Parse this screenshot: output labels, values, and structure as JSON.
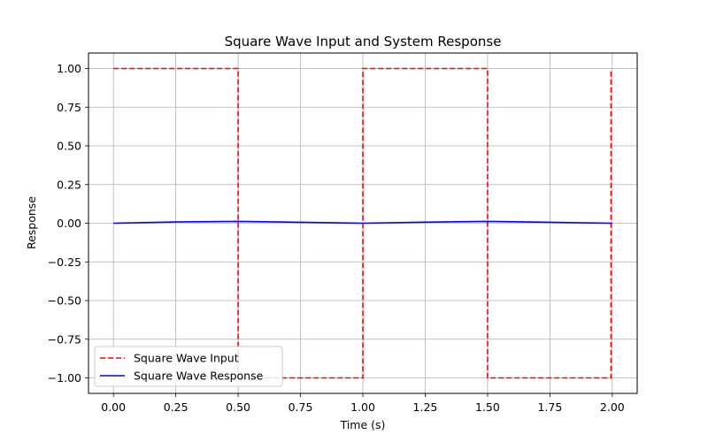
{
  "chart_data": {
    "type": "line",
    "title": "Square Wave Input and System Response",
    "xlabel": "Time (s)",
    "ylabel": "Response",
    "xlim": [
      -0.1,
      2.1
    ],
    "ylim": [
      -1.1,
      1.1
    ],
    "x_ticks": [
      0.0,
      0.25,
      0.5,
      0.75,
      1.0,
      1.25,
      1.5,
      1.75,
      2.0
    ],
    "x_tick_labels": [
      "0.00",
      "0.25",
      "0.50",
      "0.75",
      "1.00",
      "1.25",
      "1.50",
      "1.75",
      "2.00"
    ],
    "y_ticks": [
      1.0,
      0.75,
      0.5,
      0.25,
      0.0,
      -0.25,
      -0.5,
      -0.75,
      -1.0
    ],
    "y_tick_labels": [
      "1.00",
      "0.75",
      "0.50",
      "0.25",
      "0.00",
      "−0.25",
      "−0.50",
      "−0.75",
      "−1.00"
    ],
    "grid": true,
    "legend_position": "lower-left",
    "series": [
      {
        "name": "Square Wave Input",
        "color": "#ff0000",
        "style": "dashed",
        "x": [
          0.0,
          0.5,
          0.5,
          1.0,
          1.0,
          1.5,
          1.5,
          1.995,
          1.995
        ],
        "y": [
          1.0,
          1.0,
          -1.0,
          -1.0,
          1.0,
          1.0,
          -1.0,
          -1.0,
          1.0
        ]
      },
      {
        "name": "Square Wave Response",
        "color": "#0000ff",
        "style": "solid",
        "x": [
          0.0,
          0.25,
          0.5,
          0.75,
          1.0,
          1.25,
          1.5,
          1.75,
          2.0
        ],
        "y": [
          0.0,
          0.008,
          0.012,
          0.006,
          0.0,
          0.007,
          0.012,
          0.006,
          0.0
        ]
      }
    ]
  }
}
